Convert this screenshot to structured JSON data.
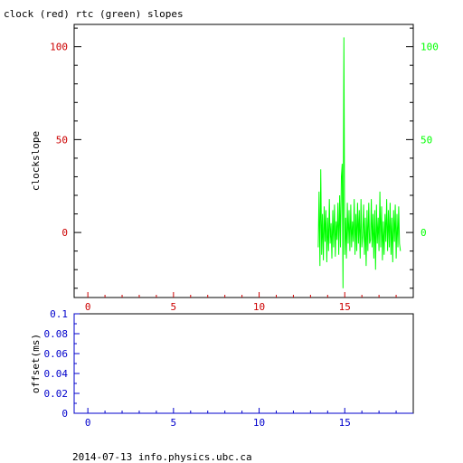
{
  "title": "clock (red) rtc (green) slopes",
  "footer": "2014-07-13 info.physics.ubc.ca",
  "colors": {
    "clock": "#cc0000",
    "rtc": "#00ff00",
    "lower_axis": "#0000cc",
    "frame": "#000000"
  },
  "chart_data": [
    {
      "type": "line",
      "title": "clock (red) rtc (green) slopes",
      "ylabel": "clockslope",
      "xlim": [
        -0.8,
        19.0
      ],
      "ylim": [
        -35,
        112
      ],
      "x_ticks": [
        "0",
        "5",
        "10",
        "15"
      ],
      "y_ticks_left": [
        "0",
        "50",
        "100"
      ],
      "y_ticks_right": [
        "0",
        "50",
        "100"
      ],
      "grid": false,
      "series": [
        {
          "name": "rtc",
          "color": "#00ff00",
          "x": [
            13.45,
            13.5,
            13.55,
            13.6,
            13.65,
            13.7,
            13.75,
            13.8,
            13.85,
            13.9,
            13.95,
            14.0,
            14.05,
            14.1,
            14.15,
            14.2,
            14.25,
            14.3,
            14.35,
            14.4,
            14.45,
            14.5,
            14.55,
            14.6,
            14.65,
            14.7,
            14.75,
            14.8,
            14.85,
            14.9,
            14.95,
            15.0,
            15.05,
            15.1,
            15.15,
            15.2,
            15.25,
            15.3,
            15.35,
            15.4,
            15.45,
            15.5,
            15.55,
            15.6,
            15.65,
            15.7,
            15.75,
            15.8,
            15.85,
            15.9,
            15.95,
            16.0,
            16.05,
            16.1,
            16.15,
            16.2,
            16.25,
            16.3,
            16.35,
            16.4,
            16.45,
            16.5,
            16.55,
            16.6,
            16.65,
            16.7,
            16.75,
            16.8,
            16.85,
            16.9,
            16.95,
            17.0,
            17.05,
            17.1,
            17.15,
            17.2,
            17.25,
            17.3,
            17.35,
            17.4,
            17.45,
            17.5,
            17.55,
            17.6,
            17.65,
            17.7,
            17.75,
            17.8,
            17.85,
            17.9,
            17.95,
            18.0,
            18.05,
            18.1,
            18.15,
            18.2,
            18.25
          ],
          "values": [
            -8,
            22,
            -18,
            34,
            -12,
            10,
            -15,
            14,
            -5,
            12,
            -16,
            8,
            -10,
            18,
            -6,
            5,
            -14,
            12,
            -8,
            15,
            -13,
            6,
            -4,
            16,
            -12,
            20,
            -8,
            30,
            37,
            -30,
            105,
            -12,
            8,
            -14,
            16,
            -6,
            12,
            -10,
            15,
            -8,
            6,
            -5,
            18,
            -12,
            10,
            -10,
            16,
            -6,
            12,
            -14,
            18,
            -8,
            -2,
            15,
            -12,
            8,
            -18,
            12,
            -10,
            16,
            -6,
            -4,
            18,
            -8,
            10,
            -14,
            12,
            -20,
            15,
            -6,
            8,
            -10,
            22,
            -8,
            14,
            -15,
            6,
            -12,
            10,
            -5,
            18,
            -10,
            12,
            -8,
            16,
            -12,
            8,
            -16,
            12,
            -5,
            15,
            -14,
            10,
            -8,
            14,
            -6,
            -10
          ]
        }
      ]
    },
    {
      "type": "line",
      "ylabel": "offset(ms)",
      "xlim": [
        -0.8,
        19.0
      ],
      "ylim": [
        0,
        0.1
      ],
      "x_ticks": [
        "0",
        "5",
        "10",
        "15"
      ],
      "y_ticks": [
        "0",
        "0.02",
        "0.04",
        "0.06",
        "0.08",
        "0.1"
      ],
      "grid": false,
      "series": []
    }
  ]
}
